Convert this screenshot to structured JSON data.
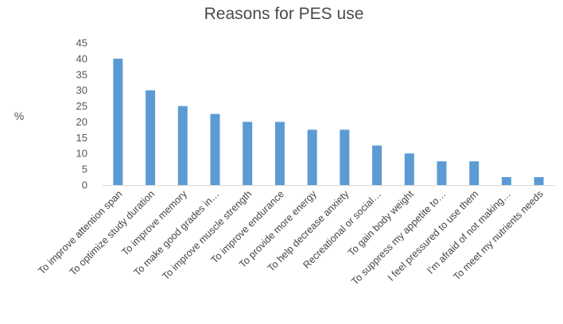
{
  "chart_data": {
    "type": "bar",
    "title": "Reasons for PES use",
    "xlabel": "",
    "ylabel": "%",
    "ylim": [
      0,
      45
    ],
    "yticks": [
      "0",
      "5",
      "10",
      "15",
      "20",
      "25",
      "30",
      "35",
      "40",
      "45"
    ],
    "grid": false,
    "bar_color": "#5b9bd5",
    "categories": [
      "To improve attention span",
      "To optimize study duration",
      "To improve memory",
      "To make good grades in…",
      "To improve muscle strength",
      "To improve endurance",
      "To provide more energy",
      "To help decrease anxiety",
      "Recreational or social…",
      "To gain body weight",
      "To suppress my appetite to…",
      "I feel pressured to use them",
      "I’m afraid of not making…",
      "To meet my nutrients needs"
    ],
    "values": [
      40,
      30,
      25,
      22.5,
      20,
      20,
      17.5,
      17.5,
      12.5,
      10,
      7.5,
      7.5,
      2.5,
      2.5
    ]
  }
}
